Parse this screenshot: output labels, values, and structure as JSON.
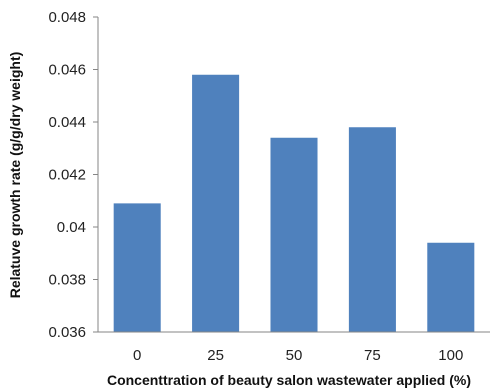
{
  "chart_data": {
    "type": "bar",
    "categories": [
      "0",
      "25",
      "50",
      "75",
      "100"
    ],
    "values": [
      0.0409,
      0.0458,
      0.0434,
      0.0438,
      0.0394
    ],
    "title": "",
    "xlabel": "Concenttration of beauty salon wastewater applied (%)",
    "ylabel": "Relatuve growth rate (g/g/dry weight)",
    "ylim": [
      0.036,
      0.048
    ],
    "yticks": [
      "0.036",
      "0.038",
      "0.04",
      "0.042",
      "0.044",
      "0.046",
      "0.048"
    ],
    "grid": false,
    "legend": "none",
    "bar_color": "#4F81BD",
    "axis_color": "#868686"
  }
}
